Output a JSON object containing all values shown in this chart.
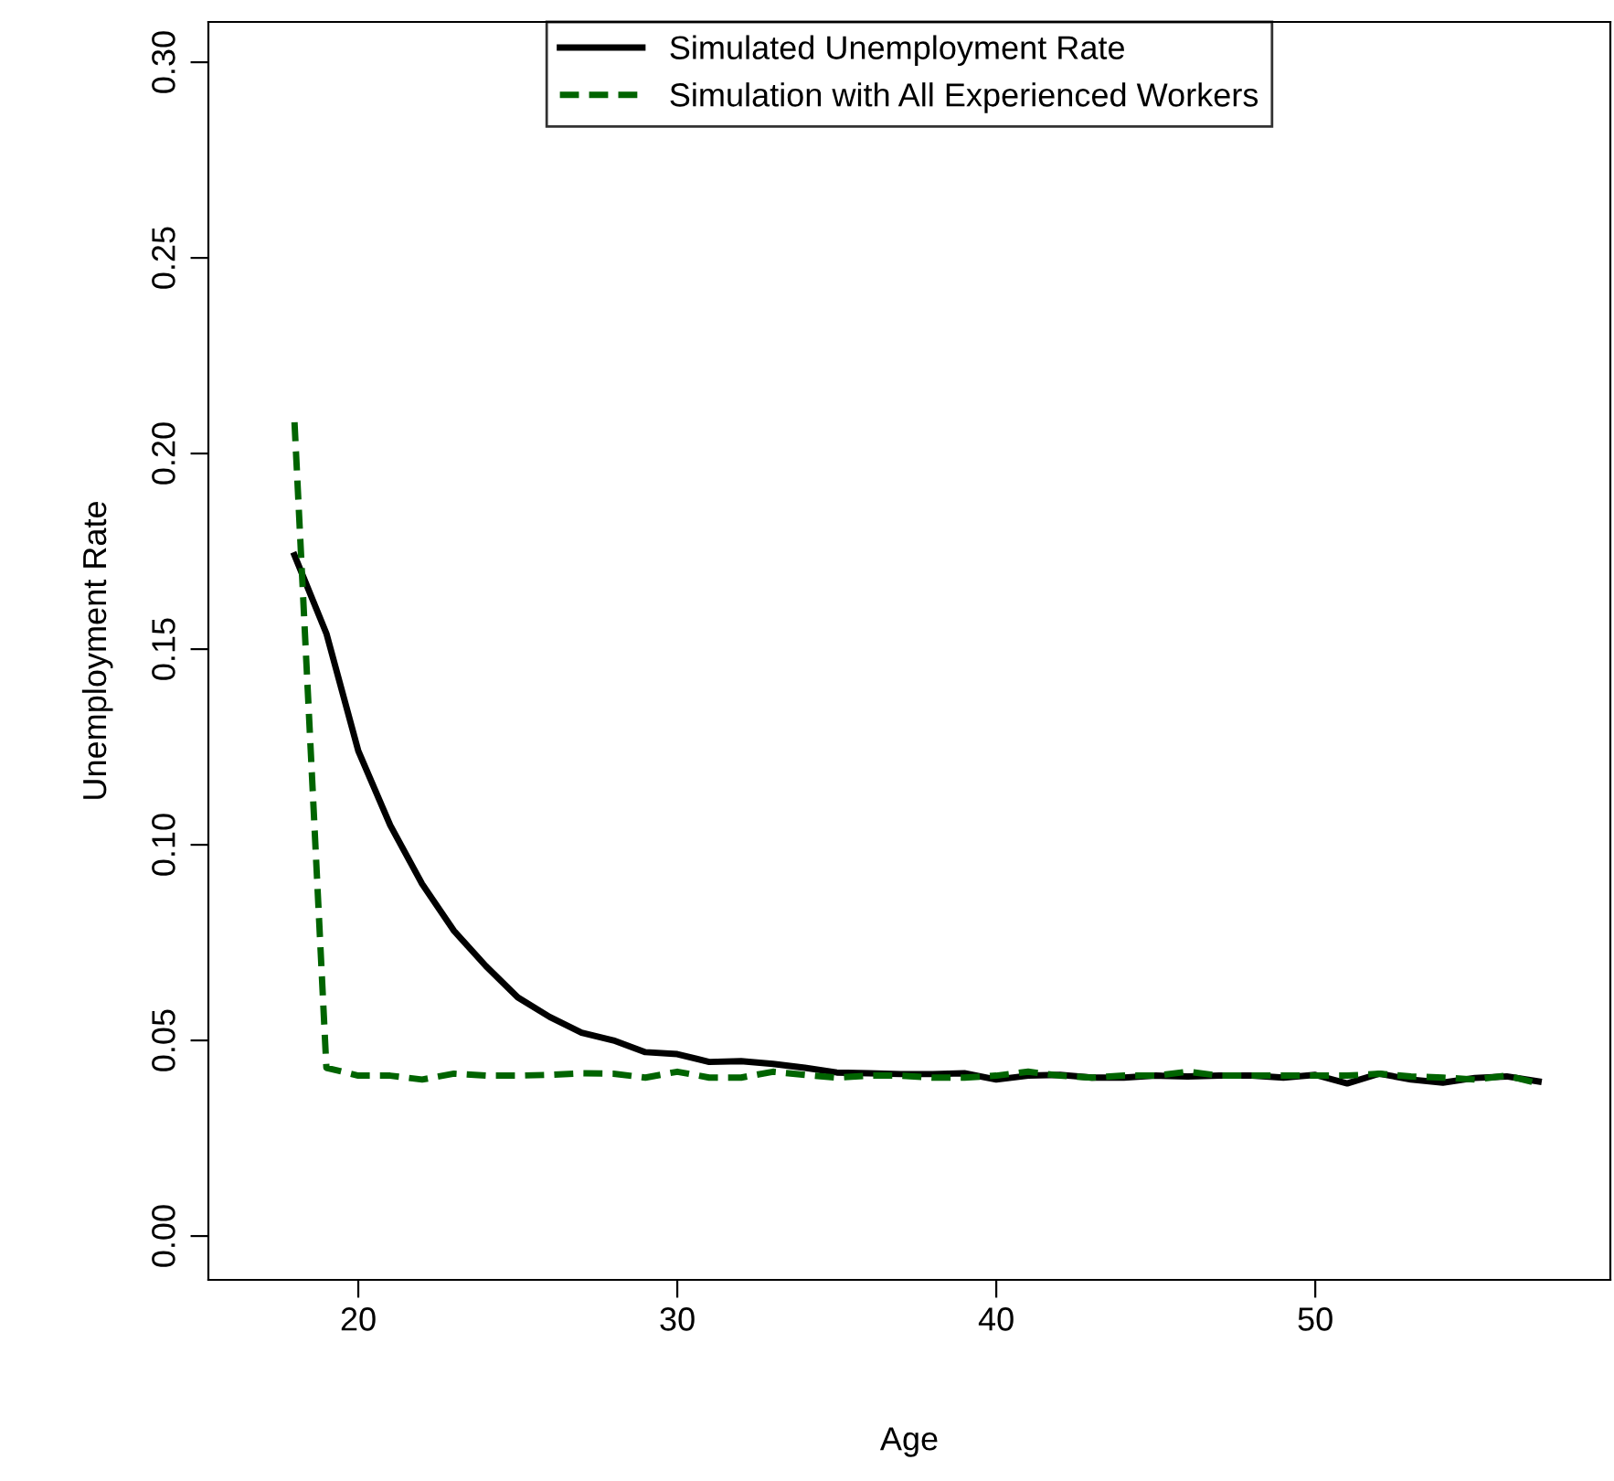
{
  "chart_data": {
    "type": "line",
    "xlabel": "Age",
    "ylabel": "Unemployment Rate",
    "x": [
      18,
      19,
      20,
      21,
      22,
      23,
      24,
      25,
      26,
      27,
      28,
      29,
      30,
      31,
      32,
      33,
      34,
      35,
      36,
      37,
      38,
      39,
      40,
      41,
      42,
      43,
      44,
      45,
      46,
      47,
      48,
      49,
      50,
      51,
      52,
      53,
      54,
      55,
      56,
      57
    ],
    "series": [
      {
        "name": "Simulated Unemployment Rate",
        "color": "#000000",
        "line_style": "solid",
        "values": [
          0.174,
          0.154,
          0.124,
          0.105,
          0.09,
          0.078,
          0.069,
          0.061,
          0.056,
          0.052,
          0.05,
          0.047,
          0.0465,
          0.0445,
          0.0447,
          0.044,
          0.043,
          0.0418,
          0.0416,
          0.0414,
          0.0414,
          0.0416,
          0.04,
          0.041,
          0.0412,
          0.0405,
          0.0405,
          0.041,
          0.0408,
          0.041,
          0.041,
          0.0405,
          0.0412,
          0.039,
          0.0415,
          0.04,
          0.0392,
          0.0404,
          0.0408,
          0.0395
        ]
      },
      {
        "name": "Simulation with All Experienced Workers",
        "color": "#006400",
        "line_style": "dashed",
        "values": [
          0.208,
          0.043,
          0.041,
          0.041,
          0.04,
          0.0415,
          0.041,
          0.041,
          0.0412,
          0.0416,
          0.0415,
          0.0405,
          0.042,
          0.0405,
          0.0405,
          0.042,
          0.0412,
          0.0405,
          0.041,
          0.041,
          0.0405,
          0.0405,
          0.041,
          0.042,
          0.041,
          0.0405,
          0.041,
          0.041,
          0.042,
          0.041,
          0.041,
          0.041,
          0.041,
          0.041,
          0.0415,
          0.0408,
          0.0405,
          0.04,
          0.041,
          0.039
        ]
      }
    ],
    "xlim": [
      15.3,
      59.25
    ],
    "ylim": [
      -0.0112,
      0.3103
    ],
    "xticks": [
      20,
      30,
      40,
      50
    ],
    "yticks": [
      {
        "value": 0,
        "label": "0.00"
      },
      {
        "value": 0.05,
        "label": "0.05"
      },
      {
        "value": 0.1,
        "label": "0.10"
      },
      {
        "value": 0.15,
        "label": "0.15"
      },
      {
        "value": 0.2,
        "label": "0.20"
      },
      {
        "value": 0.25,
        "label": "0.25"
      },
      {
        "value": 0.3,
        "label": "0.30"
      }
    ],
    "grid": false,
    "legend": "top"
  }
}
